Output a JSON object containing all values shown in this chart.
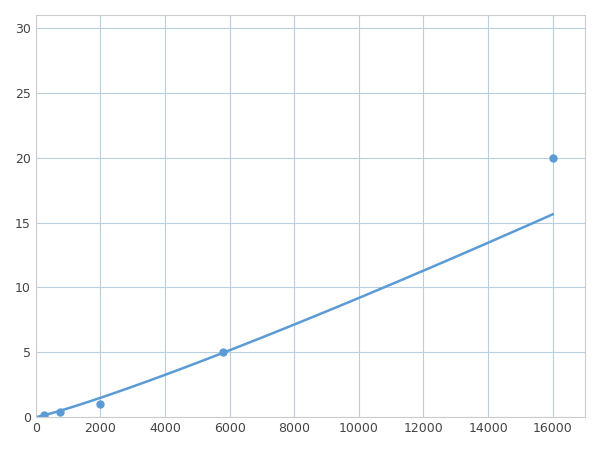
{
  "x": [
    250,
    750,
    2000,
    5800,
    16000
  ],
  "y": [
    0.2,
    0.4,
    1.0,
    5.0,
    20.0
  ],
  "line_color": "#5b9bd5",
  "marker_color": "#5b9bd5",
  "marker_size": 5,
  "marker_style": "o",
  "line_width": 1.8,
  "xlim": [
    0,
    17000
  ],
  "ylim": [
    0,
    31
  ],
  "xticks": [
    0,
    2000,
    4000,
    6000,
    8000,
    10000,
    12000,
    14000,
    16000
  ],
  "yticks": [
    0,
    5,
    10,
    15,
    20,
    25,
    30
  ],
  "grid_color": "#b8cfe0",
  "background_color": "#ffffff",
  "figsize": [
    6.0,
    4.5
  ],
  "dpi": 100
}
